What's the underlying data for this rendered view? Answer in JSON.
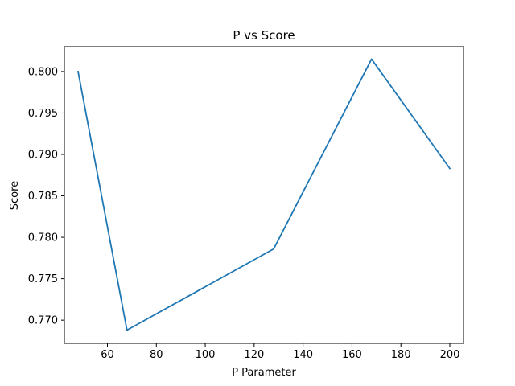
{
  "chart_data": {
    "type": "line",
    "title": "P vs Score",
    "xlabel": "P Parameter",
    "ylabel": "Score",
    "xlim": [
      42.4,
      205.6
    ],
    "ylim": [
      0.7672,
      0.803
    ],
    "x_ticks": [
      60,
      80,
      100,
      120,
      140,
      160,
      180,
      200
    ],
    "x_tick_labels": [
      "60",
      "80",
      "100",
      "120",
      "140",
      "160",
      "180",
      "200"
    ],
    "y_ticks": [
      0.77,
      0.775,
      0.78,
      0.785,
      0.79,
      0.795,
      0.8
    ],
    "y_tick_labels": [
      "0.770",
      "0.775",
      "0.780",
      "0.785",
      "0.790",
      "0.795",
      "0.800"
    ],
    "grid": false,
    "series": [
      {
        "color": "#1f77b4",
        "x": [
          48,
          68,
          128,
          168,
          200
        ],
        "y": [
          0.8,
          0.7688,
          0.7786,
          0.8015,
          0.7883
        ]
      }
    ]
  }
}
